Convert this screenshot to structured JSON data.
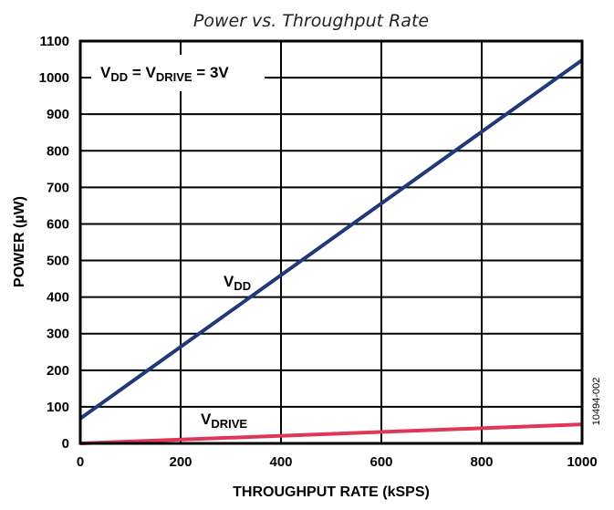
{
  "chart_data": {
    "type": "line",
    "title": "Power vs. Throughput Rate",
    "xlabel": "THROUGHPUT RATE (kSPS)",
    "ylabel": "POWER (µW)",
    "xlim": [
      0,
      1000
    ],
    "ylim": [
      0,
      1100
    ],
    "xticks": [
      0,
      200,
      400,
      600,
      800,
      1000
    ],
    "yticks": [
      0,
      100,
      200,
      300,
      400,
      500,
      600,
      700,
      800,
      900,
      1000,
      1100
    ],
    "grid": true,
    "series": [
      {
        "name": "VDD",
        "name_main": "V",
        "name_sub": "DD",
        "color": "#1f3a78",
        "x": [
          0,
          1000
        ],
        "y": [
          68,
          1048
        ]
      },
      {
        "name": "VDRIVE",
        "name_main": "V",
        "name_sub": "DRIVE",
        "color": "#e0365a",
        "x": [
          0,
          1000
        ],
        "y": [
          0,
          52
        ]
      }
    ],
    "annotation": {
      "v1": "V",
      "s1": "DD",
      "mid": " = V",
      "s2": "DRIVE",
      "end": " = 3V"
    },
    "figure_code": "10494-002"
  }
}
